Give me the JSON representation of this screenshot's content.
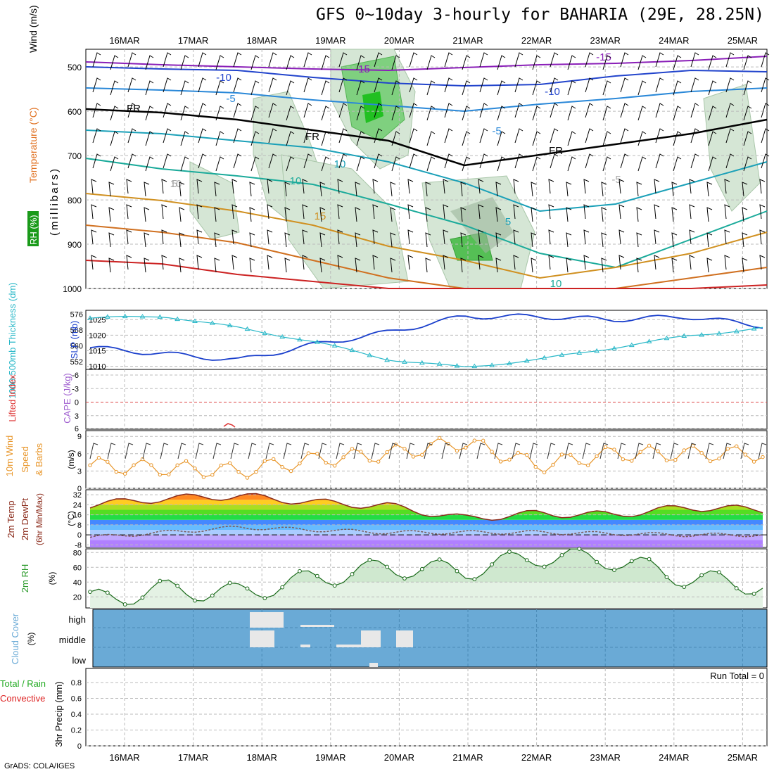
{
  "title": "GFS 0~10day 3-hourly for BAHARIA (29E, 28.25N)",
  "footer": "GrADS: COLA/IGES",
  "dates": [
    "16MAR",
    "17MAR",
    "18MAR",
    "19MAR",
    "20MAR",
    "21MAR",
    "22MAR",
    "23MAR",
    "24MAR",
    "25MAR"
  ],
  "colors": {
    "grid": "#bbbbbb",
    "cloud_bg": "#6aaad6",
    "wind_speed": "#e8962a",
    "slp": "#1a3fcc",
    "thickness": "#2ab8c8",
    "rh": "#2a9a2a",
    "temp_line": "#8b2b1b",
    "dewpt_line": "#7a5a5a"
  },
  "panels": {
    "upper": {
      "labels": [
        {
          "text": "Wind (m/s)",
          "color": "#000000"
        },
        {
          "text": "Temperature (°C)",
          "color": "#e07020"
        },
        {
          "text": "RH (%)",
          "color": "#1a9a1a"
        },
        {
          "text": "(millibars)",
          "color": "#000000"
        }
      ],
      "levels": [
        500,
        600,
        700,
        800,
        900,
        1000
      ],
      "isotherm_labels": [
        "-15",
        "-15",
        "-10",
        "-10",
        "-5",
        "-5",
        "FR",
        "FR",
        "FR",
        "-5",
        "5",
        "10",
        "10",
        "15",
        "5",
        "10",
        "10"
      ]
    },
    "slp": {
      "label_left": "1000-500mb Thickness (dm)",
      "label_right": "SLP (mb)",
      "thickness_ticks": [
        576,
        568,
        560,
        552
      ],
      "slp_ticks": [
        1025,
        1020,
        1015,
        1010
      ]
    },
    "cape": {
      "label_left": "Lifted Index",
      "label_right": "CAPE (J/kg)",
      "ticks": [
        "-6",
        "-3",
        "0",
        "3",
        "6"
      ]
    },
    "wind10m": {
      "label": "10m Wind Speed & Barbs",
      "unit": "(m/s)",
      "ticks": [
        9,
        6,
        3,
        0
      ]
    },
    "temp2m": {
      "label": "2m Temp 2m DewPt (6hr Min/Max)",
      "unit": "(°C)",
      "ticks": [
        32,
        24,
        16,
        8,
        0,
        -8
      ]
    },
    "rh2m": {
      "label": "2m RH",
      "unit": "(%)",
      "ticks": [
        80,
        60,
        40,
        20
      ]
    },
    "cloud": {
      "label": "Cloud Cover",
      "unit": "(%)",
      "rows": [
        "high",
        "middle",
        "low"
      ]
    },
    "precip": {
      "label_total": "Total / Rain",
      "label_conv": "Convective",
      "label_main": "3hr Precip (mm)",
      "run_total": "Run Total = 0",
      "ticks": [
        "0.8",
        "0.6",
        "0.4",
        "0.2",
        "0"
      ]
    }
  },
  "chart_data": [
    {
      "type": "line",
      "title": "1000-500mb Thickness / SLP",
      "x": [
        "16MAR",
        "17MAR",
        "18MAR",
        "19MAR",
        "20MAR",
        "21MAR",
        "22MAR",
        "23MAR",
        "24MAR",
        "25MAR"
      ],
      "series": [
        {
          "name": "SLP (mb)",
          "values": [
            1016,
            1014,
            1012,
            1017,
            1021,
            1026,
            1026,
            1025,
            1026,
            1023
          ]
        },
        {
          "name": "1000-500mb Thickness (dm)",
          "values": [
            574,
            575,
            569,
            562,
            553,
            549,
            553,
            559,
            565,
            569
          ]
        }
      ],
      "ylim_left": [
        548,
        578
      ],
      "ylim_right": [
        1009,
        1028
      ]
    },
    {
      "type": "line",
      "title": "10m Wind Speed",
      "x": [
        "16MAR",
        "17MAR",
        "18MAR",
        "19MAR",
        "20MAR",
        "21MAR",
        "22MAR",
        "23MAR",
        "24MAR",
        "25MAR"
      ],
      "series": [
        {
          "name": "10m Wind Speed",
          "values": [
            4,
            3.5,
            3,
            5,
            6,
            8,
            4,
            6,
            6,
            6
          ]
        }
      ],
      "ylim": [
        0,
        10
      ]
    },
    {
      "type": "line",
      "title": "2m Temp / DewPt",
      "x": [
        "16MAR",
        "17MAR",
        "18MAR",
        "19MAR",
        "20MAR",
        "21MAR",
        "22MAR",
        "23MAR",
        "24MAR",
        "25MAR"
      ],
      "series": [
        {
          "name": "2m Temp",
          "values": [
            24,
            29,
            31,
            26,
            23,
            13,
            17,
            16,
            22,
            20
          ]
        },
        {
          "name": "2m DewPt",
          "values": [
            -2,
            2,
            6,
            4,
            2,
            2,
            2,
            1,
            0,
            0
          ]
        }
      ],
      "ylim": [
        -10,
        36
      ]
    },
    {
      "type": "line",
      "title": "2m RH",
      "x": [
        "16MAR",
        "17MAR",
        "18MAR",
        "19MAR",
        "20MAR",
        "21MAR",
        "22MAR",
        "23MAR",
        "24MAR",
        "25MAR"
      ],
      "series": [
        {
          "name": "2m RH",
          "values": [
            15,
            30,
            25,
            45,
            60,
            55,
            75,
            70,
            45,
            35
          ]
        }
      ],
      "ylim": [
        5,
        85
      ]
    },
    {
      "type": "bar",
      "title": "3hr Precip",
      "x": [
        "16MAR",
        "17MAR",
        "18MAR",
        "19MAR",
        "20MAR",
        "21MAR",
        "22MAR",
        "23MAR",
        "24MAR",
        "25MAR"
      ],
      "values": [
        0,
        0,
        0,
        0,
        0,
        0,
        0,
        0,
        0,
        0
      ],
      "ylim": [
        0,
        1
      ]
    }
  ]
}
